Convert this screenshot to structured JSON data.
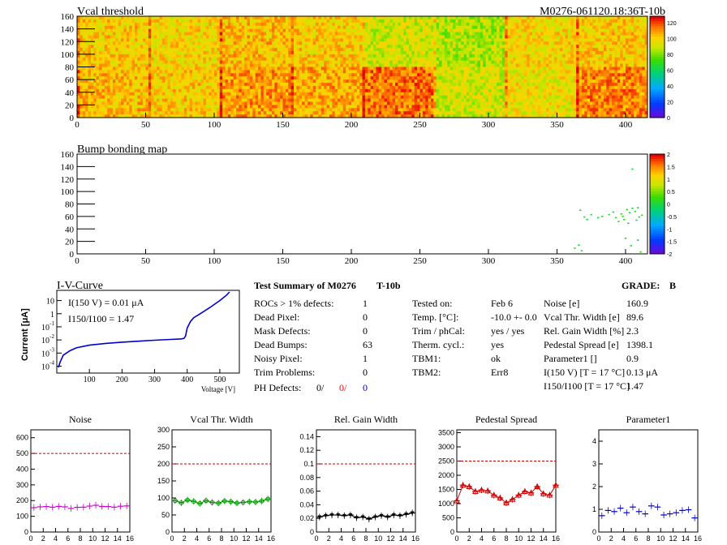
{
  "header": {
    "title_left": "Vcal threshold",
    "title_right": "M0276-061120.18:36T-10b"
  },
  "chart_data": [
    {
      "type": "heatmap",
      "title": "Vcal threshold",
      "x_ticks": [
        "0",
        "50",
        "100",
        "150",
        "200",
        "250",
        "300",
        "350",
        "400"
      ],
      "y_ticks": [
        "0",
        "20",
        "40",
        "60",
        "80",
        "100",
        "120",
        "140",
        "160"
      ],
      "xlim": [
        0,
        416
      ],
      "ylim": [
        0,
        160
      ],
      "colorbar_ticks": [
        "0",
        "20",
        "40",
        "60",
        "80",
        "100",
        "120"
      ],
      "colorbar_range": [
        0,
        128
      ],
      "roc_grid": {
        "cols": 8,
        "rows": 2
      },
      "roc_levels_top": [
        0.8,
        0.78,
        0.82,
        0.8,
        0.72,
        0.68,
        0.78,
        0.8
      ],
      "roc_levels_bottom": [
        0.82,
        0.8,
        0.86,
        0.84,
        0.9,
        0.72,
        0.76,
        0.88
      ]
    },
    {
      "type": "scatter",
      "title": "Bump bonding map",
      "x_ticks": [
        "0",
        "50",
        "100",
        "150",
        "200",
        "250",
        "300",
        "350",
        "400"
      ],
      "y_ticks": [
        "0",
        "20",
        "40",
        "60",
        "80",
        "100",
        "120",
        "140",
        "160"
      ],
      "xlim": [
        0,
        416
      ],
      "ylim": [
        0,
        160
      ],
      "colorbar_ticks": [
        "2",
        "1.5",
        "1",
        "0.5",
        "0",
        "-0.5",
        "-1",
        "-1.5",
        "-2"
      ],
      "points": [
        [
          405,
          136
        ],
        [
          367,
          70
        ],
        [
          372,
          55
        ],
        [
          383,
          60
        ],
        [
          388,
          63
        ],
        [
          393,
          58
        ],
        [
          397,
          64
        ],
        [
          401,
          71
        ],
        [
          403,
          66
        ],
        [
          405,
          73
        ],
        [
          407,
          68
        ],
        [
          409,
          74
        ],
        [
          410,
          59
        ],
        [
          412,
          62
        ],
        [
          399,
          55
        ],
        [
          395,
          52
        ],
        [
          402,
          49
        ],
        [
          363,
          9
        ],
        [
          366,
          14
        ],
        [
          368,
          5
        ],
        [
          404,
          13
        ],
        [
          409,
          22
        ],
        [
          411,
          3
        ],
        [
          400,
          25
        ],
        [
          380,
          58
        ],
        [
          375,
          63
        ],
        [
          370,
          59
        ],
        [
          398,
          60
        ],
        [
          391,
          67
        ],
        [
          408,
          54
        ]
      ]
    },
    {
      "type": "line",
      "title": "I-V-Curve",
      "xlabel": "Voltage [V]",
      "ylabel": "Current [μA]",
      "x_ticks": [
        "100",
        "200",
        "300",
        "400",
        "500"
      ],
      "xlim": [
        0,
        560
      ],
      "y_log": true,
      "ylim": [
        3e-05,
        60
      ],
      "x": [
        5,
        10,
        20,
        40,
        60,
        100,
        150,
        200,
        250,
        300,
        350,
        380,
        390,
        395,
        400,
        410,
        420,
        440,
        470,
        500,
        520,
        530
      ],
      "y": [
        8e-05,
        0.0002,
        0.0007,
        0.0015,
        0.0025,
        0.004,
        0.0055,
        0.0068,
        0.008,
        0.0095,
        0.011,
        0.012,
        0.013,
        0.02,
        0.08,
        0.25,
        0.5,
        1.0,
        3.0,
        10,
        25,
        45
      ]
    },
    {
      "type": "scatter",
      "title": "Noise",
      "x_ticks": [
        "0",
        "2",
        "4",
        "6",
        "8",
        "10",
        "12",
        "14",
        "16"
      ],
      "y_ticks": [
        "0",
        "100",
        "200",
        "300",
        "400",
        "500",
        "600"
      ],
      "xlim": [
        0,
        16
      ],
      "ylim": [
        0,
        650
      ],
      "limit": 500,
      "color": "#cc00cc",
      "marker": "bar",
      "values": [
        155,
        160,
        162,
        158,
        163,
        160,
        150,
        157,
        158,
        165,
        170,
        163,
        162,
        158,
        164,
        166
      ]
    },
    {
      "type": "scatter",
      "title": "Vcal Thr. Width",
      "x_ticks": [
        "0",
        "2",
        "4",
        "6",
        "8",
        "10",
        "12",
        "14",
        "16"
      ],
      "y_ticks": [
        "0",
        "50",
        "100",
        "150",
        "200",
        "250",
        "300"
      ],
      "xlim": [
        0,
        16
      ],
      "ylim": [
        0,
        300
      ],
      "limit": 200,
      "color": "#009900",
      "marker": "circle",
      "values": [
        92,
        86,
        94,
        90,
        84,
        92,
        87,
        85,
        91,
        89,
        85,
        87,
        89,
        88,
        91,
        97
      ]
    },
    {
      "type": "scatter",
      "title": "Rel. Gain Width",
      "x_ticks": [
        "0",
        "2",
        "4",
        "6",
        "8",
        "10",
        "12",
        "14",
        "16"
      ],
      "y_ticks": [
        "0",
        "0.02",
        "0.04",
        "0.06",
        "0.08",
        "0.1",
        "0.12",
        "0.14"
      ],
      "xlim": [
        0,
        16
      ],
      "ylim": [
        0,
        0.15
      ],
      "limit": 0.1,
      "color": "#000000",
      "marker": "tri-down",
      "values": [
        0.022,
        0.024,
        0.025,
        0.025,
        0.024,
        0.025,
        0.021,
        0.022,
        0.019,
        0.022,
        0.024,
        0.022,
        0.025,
        0.024,
        0.026,
        0.028
      ]
    },
    {
      "type": "line",
      "title": "Pedestal Spread",
      "x_ticks": [
        "0",
        "2",
        "4",
        "6",
        "8",
        "10",
        "12",
        "14",
        "16"
      ],
      "y_ticks": [
        "0",
        "500",
        "1000",
        "1500",
        "2000",
        "2500",
        "3000",
        "3500"
      ],
      "xlim": [
        0,
        16
      ],
      "ylim": [
        0,
        3600
      ],
      "limit": 2500,
      "color": "#cc0000",
      "marker": "tri-up",
      "values": [
        1100,
        1650,
        1600,
        1430,
        1480,
        1450,
        1300,
        1200,
        1030,
        1150,
        1300,
        1430,
        1380,
        1600,
        1350,
        1300,
        1650
      ]
    },
    {
      "type": "scatter",
      "title": "Parameter1",
      "x_ticks": [
        "0",
        "2",
        "4",
        "6",
        "8",
        "10",
        "12",
        "14",
        "16"
      ],
      "y_ticks": [
        "0",
        "1",
        "2",
        "3",
        "4"
      ],
      "xlim": [
        0,
        16
      ],
      "ylim": [
        0,
        4.5
      ],
      "color": "#0000cc",
      "marker": "bar",
      "values": [
        0.72,
        0.95,
        0.9,
        1.05,
        0.85,
        1.1,
        0.9,
        0.8,
        1.15,
        1.1,
        0.75,
        0.8,
        0.85,
        0.95,
        0.98,
        0.62
      ]
    }
  ],
  "summary": {
    "heading": "Test Summary of M0276",
    "suffix": "T-10b",
    "grade_label": "GRADE:",
    "grade": "B",
    "left_rows": [
      {
        "label": "ROCs > 1% defects:",
        "value": "1"
      },
      {
        "label": "Dead Pixel:",
        "value": "0"
      },
      {
        "label": "Mask Defects:",
        "value": "0"
      },
      {
        "label": "Dead Bumps:",
        "value": "63"
      },
      {
        "label": "Noisy Pixel:",
        "value": "1"
      },
      {
        "label": "Trim Problems:",
        "value": "0"
      }
    ],
    "ph_defects": {
      "label": "PH Defects:",
      "v1": "0/",
      "v2": "0/",
      "v3": "0"
    },
    "mid_rows": [
      {
        "label": "Tested on:",
        "value": "Feb 6"
      },
      {
        "label": "Temp. [°C]:",
        "value": "-10.0 +- 0.0"
      },
      {
        "label": "Trim / phCal:",
        "value": "yes / yes"
      },
      {
        "label": "Therm. cycl.:",
        "value": "yes"
      },
      {
        "label": "TBM1:",
        "value": "ok"
      },
      {
        "label": "TBM2:",
        "value": "Err8"
      }
    ],
    "right_rows": [
      {
        "label": "Noise [e]",
        "value": "160.9"
      },
      {
        "label": "Vcal Thr. Width [e]",
        "value": "89.6"
      },
      {
        "label": "Rel. Gain Width [%]",
        "value": "2.3"
      },
      {
        "label": "Pedestal Spread [e]",
        "value": "1398.1"
      },
      {
        "label": "Parameter1 []",
        "value": "0.9"
      },
      {
        "label": "I(150 V) [T = 17 °C]",
        "value": "0.13 μA"
      },
      {
        "label": "I150/I100 [T = 17 °C]",
        "value": "1.47"
      }
    ]
  },
  "iv_annotations": {
    "line1": "I(150 V) = 0.01 μA",
    "line2": "I150/I100 =  1.47"
  },
  "colors": {
    "blue": "#0000cc",
    "red": "#ff0000",
    "limit_line": "#cc0000"
  }
}
